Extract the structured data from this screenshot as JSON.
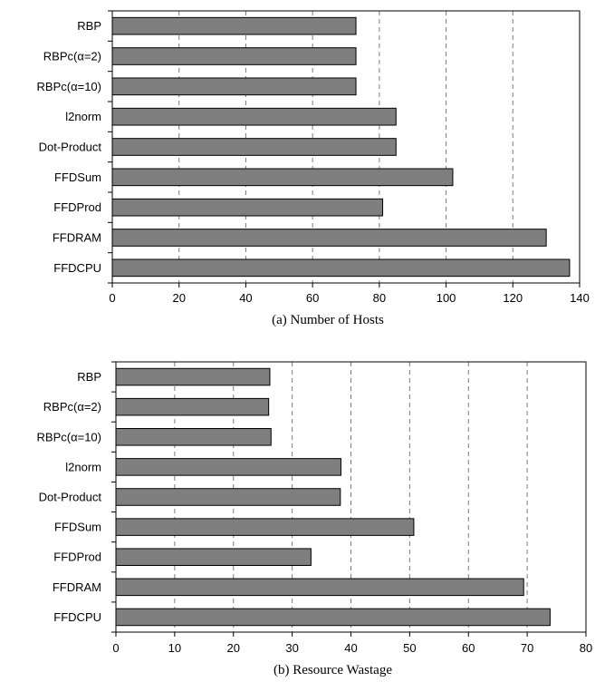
{
  "chart_data": [
    {
      "type": "bar",
      "orientation": "horizontal",
      "caption": "(a) Number of Hosts",
      "categories": [
        "RBP",
        "RBPc(α=2)",
        "RBPc(α=10)",
        "l2norm",
        "Dot-Product",
        "FFDSum",
        "FFDProd",
        "FFDRAM",
        "FFDCPU"
      ],
      "values": [
        73,
        73,
        73,
        85,
        85,
        102,
        81,
        130,
        137
      ],
      "xlim": [
        0,
        140
      ],
      "xticks": [
        0,
        20,
        40,
        60,
        80,
        100,
        120,
        140
      ],
      "grid": "dashed vertical",
      "bar_color": "#7f7f7f"
    },
    {
      "type": "bar",
      "orientation": "horizontal",
      "caption": "(b) Resource Wastage",
      "categories": [
        "RBP",
        "RBPc(α=2)",
        "RBPc(α=10)",
        "l2norm",
        "Dot-Product",
        "FFDSum",
        "FFDProd",
        "FFDRAM",
        "FFDCPU"
      ],
      "values": [
        26.2,
        26.0,
        26.4,
        38.3,
        38.2,
        50.7,
        33.2,
        69.4,
        73.9
      ],
      "xlim": [
        0,
        80
      ],
      "xticks": [
        0,
        10,
        20,
        30,
        40,
        50,
        60,
        70,
        80
      ],
      "grid": "dashed vertical",
      "bar_color": "#7f7f7f"
    }
  ]
}
